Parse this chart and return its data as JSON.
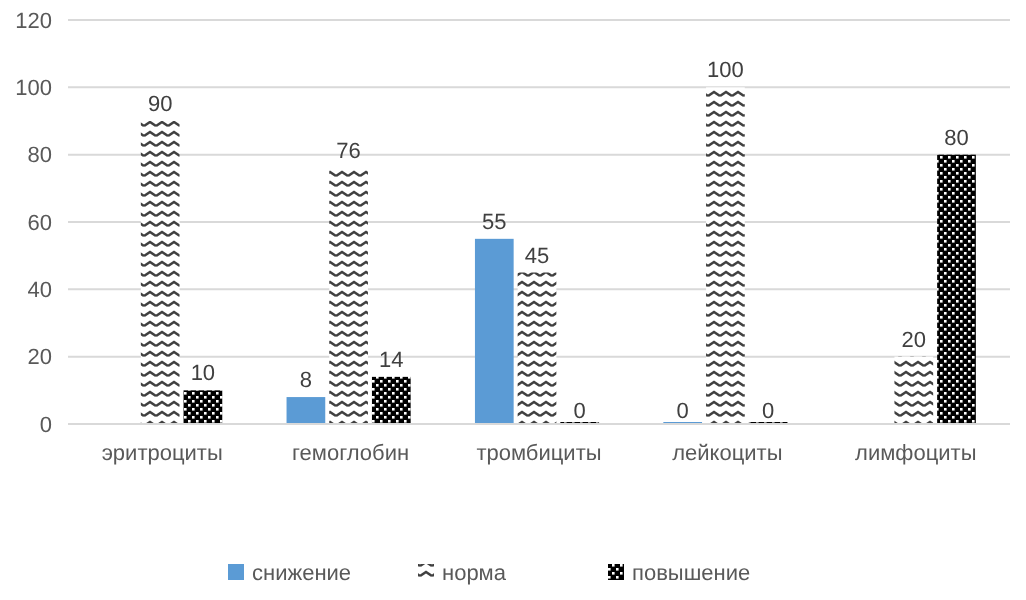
{
  "chart_data": {
    "type": "bar",
    "categories": [
      "эритроциты",
      "гемоглобин",
      "тромбициты",
      "лейкоциты",
      "лимфоциты"
    ],
    "series": [
      {
        "name": "снижение",
        "color": "#5b9bd5",
        "values": [
          null,
          8,
          55,
          0,
          null
        ],
        "value_labels": [
          null,
          "8",
          "55",
          "0",
          null
        ]
      },
      {
        "name": "норма",
        "color": "#404040",
        "values": [
          90,
          76,
          45,
          100,
          20
        ],
        "value_labels": [
          "90",
          "76",
          "45",
          "100",
          "20"
        ]
      },
      {
        "name": "повышение",
        "color": "#000000",
        "values": [
          10,
          14,
          0,
          0,
          80
        ],
        "value_labels": [
          "10",
          "14",
          "0",
          "0",
          "80"
        ]
      }
    ],
    "ylim": [
      0,
      120
    ],
    "yticks": [
      0,
      20,
      40,
      60,
      80,
      100,
      120
    ],
    "grid": "y",
    "legend": "bottom"
  }
}
